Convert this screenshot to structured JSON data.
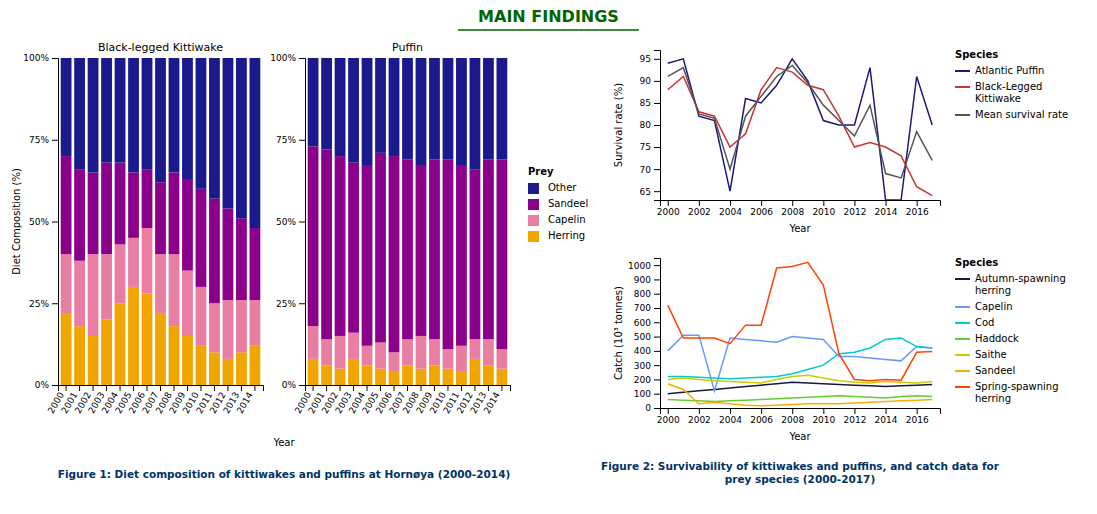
{
  "title": "MAIN FINDINGS",
  "annotations": [
    "Figure 1: Diet composition of kittiwakes and puffins at Hornøya (2000-2014)",
    "Figure 2: Survivability of kittiwakes and puffins, and catch data for\nprey species (2000-2017)"
  ],
  "chart_data": [
    {
      "type": "bar",
      "stacked": true,
      "title": "Black-legged Kittiwake",
      "x_label": "Year",
      "y_label": "Diet Composition (%)",
      "legend_title": "Prey",
      "categories": [
        "2000",
        "2001",
        "2002",
        "2003",
        "2004",
        "2005",
        "2006",
        "2007",
        "2008",
        "2009",
        "2010",
        "2011",
        "2012",
        "2013",
        "2014"
      ],
      "series": [
        {
          "name": "Herring",
          "color": "#f0a500",
          "values": [
            22,
            18,
            15,
            20,
            25,
            30,
            28,
            22,
            18,
            15,
            12,
            10,
            8,
            10,
            12
          ]
        },
        {
          "name": "Capelin",
          "color": "#e87ea1",
          "values": [
            18,
            20,
            25,
            20,
            18,
            15,
            20,
            18,
            22,
            20,
            18,
            15,
            18,
            16,
            14
          ]
        },
        {
          "name": "Sandeel",
          "color": "#8b008b",
          "values": [
            30,
            28,
            25,
            28,
            25,
            20,
            18,
            22,
            25,
            28,
            30,
            32,
            28,
            25,
            22
          ]
        },
        {
          "name": "Other",
          "color": "#1a1a8c",
          "values": [
            30,
            34,
            35,
            32,
            32,
            35,
            34,
            38,
            35,
            37,
            40,
            43,
            46,
            49,
            52
          ]
        }
      ],
      "ylim": [
        0,
        100
      ],
      "yticks": [
        {
          "value": 0,
          "label": "0%"
        },
        {
          "value": 25,
          "label": "25%"
        },
        {
          "value": 50,
          "label": "50%"
        },
        {
          "value": 75,
          "label": "75%"
        },
        {
          "value": 100,
          "label": "100%"
        }
      ]
    },
    {
      "type": "bar",
      "stacked": true,
      "title": "Puffin",
      "categories": [
        "2000",
        "2001",
        "2002",
        "2003",
        "2004",
        "2005",
        "2006",
        "2007",
        "2008",
        "2009",
        "2010",
        "2011",
        "2012",
        "2013",
        "2014"
      ],
      "series": [
        {
          "color": "#f0a500",
          "values": [
            8,
            6,
            5,
            8,
            6,
            5,
            4,
            6,
            5,
            6,
            5,
            4,
            8,
            6,
            5
          ]
        },
        {
          "color": "#e87ea1",
          "values": [
            10,
            8,
            10,
            8,
            6,
            8,
            6,
            8,
            10,
            8,
            6,
            8,
            6,
            8,
            6
          ]
        },
        {
          "color": "#8b008b",
          "values": [
            55,
            58,
            55,
            52,
            55,
            58,
            60,
            55,
            52,
            55,
            58,
            55,
            52,
            55,
            58
          ]
        },
        {
          "color": "#1a1a8c",
          "values": [
            27,
            28,
            30,
            32,
            33,
            29,
            30,
            31,
            33,
            31,
            31,
            33,
            34,
            31,
            31
          ]
        }
      ],
      "ylim": [
        0,
        100
      ],
      "yticks": [
        {
          "value": 0,
          "label": "0%"
        },
        {
          "value": 25,
          "label": "25%"
        },
        {
          "value": 50,
          "label": "50%"
        },
        {
          "value": 75,
          "label": "75%"
        },
        {
          "value": 100,
          "label": "100%"
        }
      ]
    },
    {
      "type": "line",
      "x_label": "Year",
      "y_label": "Survival rate (%)",
      "legend_title": "Species",
      "x": [
        2000,
        2001,
        2002,
        2003,
        2004,
        2005,
        2006,
        2007,
        2008,
        2009,
        2010,
        2011,
        2012,
        2013,
        2014,
        2015,
        2016,
        2017
      ],
      "series": [
        {
          "name": "Atlantic Puffin",
          "color": "#1a1a7a",
          "values": [
            94,
            95,
            82,
            81,
            65,
            86,
            85,
            89,
            95,
            90,
            81,
            80,
            80,
            93,
            63,
            63,
            91,
            80
          ]
        },
        {
          "name": "Black-Legged Kittiwake",
          "color": "#cc3333",
          "values": [
            88,
            91,
            83,
            82,
            75,
            78,
            88,
            93,
            92,
            89,
            88,
            82,
            75,
            76,
            75,
            73,
            66,
            64
          ]
        },
        {
          "name": "Mean survival rate",
          "color": "#555555",
          "values": [
            91,
            93,
            82.5,
            81.5,
            70,
            82,
            86.5,
            91,
            93.5,
            89.5,
            84.5,
            81,
            77.5,
            84.5,
            69,
            68,
            78.5,
            72
          ]
        }
      ],
      "xlim": [
        1999.5,
        2017.5
      ],
      "xticks": [
        2000,
        2002,
        2004,
        2006,
        2008,
        2010,
        2012,
        2014,
        2016
      ],
      "ylim": [
        63,
        97
      ],
      "yticks": [
        65,
        70,
        75,
        80,
        85,
        90,
        95
      ]
    },
    {
      "type": "line",
      "x_label": "Year",
      "y_label": "Catch (10³ tonnes)",
      "legend_title": "Species",
      "x": [
        2000,
        2001,
        2002,
        2003,
        2004,
        2005,
        2006,
        2007,
        2008,
        2009,
        2010,
        2011,
        2012,
        2013,
        2014,
        2015,
        2016,
        2017
      ],
      "series": [
        {
          "name": "Autumn-spawning herring",
          "color": "#1a1a3a",
          "values": [
            100,
            110,
            120,
            130,
            140,
            150,
            160,
            170,
            180,
            175,
            170,
            165,
            160,
            155,
            150,
            155,
            160,
            165
          ]
        },
        {
          "name": "Capelin",
          "color": "#6699ff",
          "values": [
            400,
            510,
            510,
            120,
            490,
            480,
            470,
            460,
            500,
            490,
            480,
            360,
            360,
            350,
            340,
            330,
            430,
            420
          ]
        },
        {
          "name": "Cod",
          "color": "#00cccc",
          "values": [
            220,
            220,
            215,
            210,
            205,
            210,
            215,
            220,
            240,
            270,
            300,
            380,
            390,
            420,
            480,
            490,
            430,
            420
          ]
        },
        {
          "name": "Haddock",
          "color": "#66cc33",
          "values": [
            60,
            55,
            50,
            45,
            50,
            55,
            60,
            65,
            70,
            75,
            80,
            85,
            80,
            75,
            70,
            80,
            85,
            80
          ]
        },
        {
          "name": "Saithe",
          "color": "#cccc00",
          "values": [
            200,
            210,
            200,
            190,
            185,
            180,
            175,
            200,
            220,
            230,
            210,
            190,
            180,
            175,
            185,
            180,
            175,
            185
          ]
        },
        {
          "name": "Sandeel",
          "color": "#ffaa00",
          "values": [
            170,
            130,
            30,
            40,
            30,
            20,
            15,
            20,
            25,
            30,
            30,
            30,
            35,
            40,
            45,
            50,
            55,
            60
          ]
        },
        {
          "name": "Spring-spawning herring",
          "color": "#ff4400",
          "values": [
            720,
            490,
            490,
            490,
            450,
            580,
            580,
            980,
            990,
            1020,
            860,
            380,
            200,
            190,
            200,
            195,
            390,
            395
          ]
        }
      ],
      "xlim": [
        1999.5,
        2017.5
      ],
      "xticks": [
        2000,
        2002,
        2004,
        2006,
        2008,
        2010,
        2012,
        2014,
        2016
      ],
      "ylim": [
        0,
        1050
      ],
      "yticks": [
        0,
        100,
        200,
        300,
        400,
        500,
        600,
        700,
        800,
        900,
        1000
      ]
    }
  ]
}
